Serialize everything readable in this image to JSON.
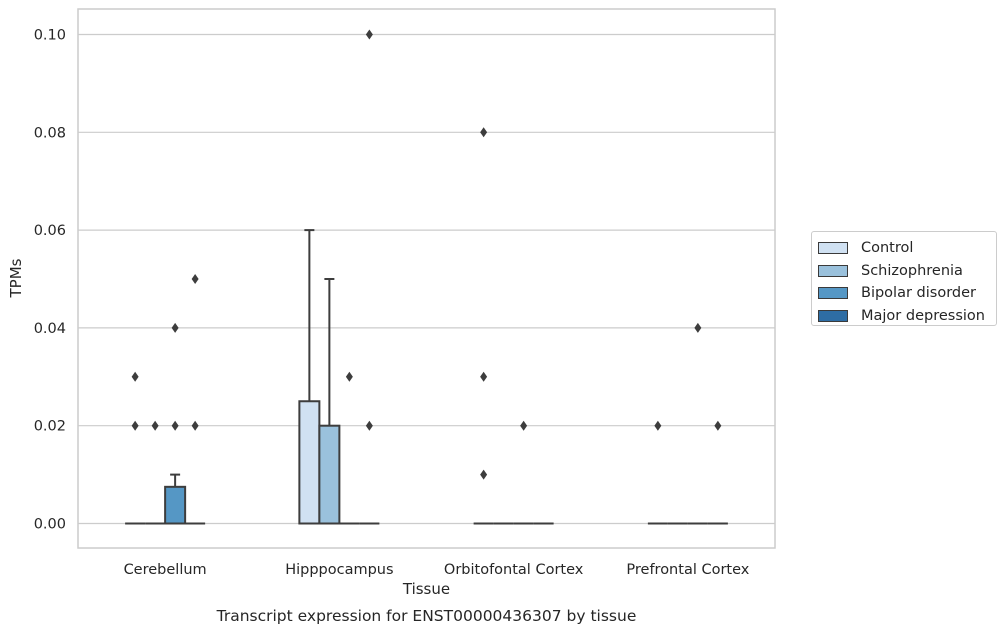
{
  "chart_data": {
    "type": "box",
    "ylabel": "TPMs",
    "xlabel": "Tissue",
    "caption": "Transcript expression for ENST00000436307 by tissue",
    "ylim": [
      -0.005,
      0.105
    ],
    "yticks": [
      0.0,
      0.02,
      0.04,
      0.06,
      0.08,
      0.1
    ],
    "ytick_labels": [
      "0.00",
      "0.02",
      "0.04",
      "0.06",
      "0.08",
      "0.10"
    ],
    "grid": true,
    "legend_position": "right",
    "categories": [
      "Cerebellum",
      "Hipppocampus",
      "Orbitofontal Cortex",
      "Prefrontal Cortex"
    ],
    "series": [
      {
        "name": "Control",
        "color": "#d0e1f2",
        "boxes": [
          {
            "q1": 0,
            "median": 0,
            "q3": 0,
            "whisker_low": 0,
            "whisker_high": 0,
            "outliers": [
              0.02,
              0.03
            ]
          },
          {
            "q1": 0,
            "median": 0,
            "q3": 0.025,
            "whisker_low": 0,
            "whisker_high": 0.06,
            "outliers": []
          },
          {
            "q1": 0,
            "median": 0,
            "q3": 0,
            "whisker_low": 0,
            "whisker_high": 0,
            "outliers": [
              0.01,
              0.03,
              0.08
            ]
          },
          {
            "q1": 0,
            "median": 0,
            "q3": 0,
            "whisker_low": 0,
            "whisker_high": 0,
            "outliers": [
              0.02
            ]
          }
        ]
      },
      {
        "name": "Schizophrenia",
        "color": "#9ac1dc",
        "boxes": [
          {
            "q1": 0,
            "median": 0,
            "q3": 0,
            "whisker_low": 0,
            "whisker_high": 0,
            "outliers": [
              0.02
            ]
          },
          {
            "q1": 0,
            "median": 0,
            "q3": 0.02,
            "whisker_low": 0,
            "whisker_high": 0.05,
            "outliers": []
          },
          {
            "q1": 0,
            "median": 0,
            "q3": 0,
            "whisker_low": 0,
            "whisker_high": 0,
            "outliers": []
          },
          {
            "q1": 0,
            "median": 0,
            "q3": 0,
            "whisker_low": 0,
            "whisker_high": 0,
            "outliers": []
          }
        ]
      },
      {
        "name": "Bipolar disorder",
        "color": "#5597c5",
        "boxes": [
          {
            "q1": 0,
            "median": 0,
            "q3": 0.0075,
            "whisker_low": 0,
            "whisker_high": 0.01,
            "outliers": [
              0.02,
              0.04
            ]
          },
          {
            "q1": 0,
            "median": 0,
            "q3": 0,
            "whisker_low": 0,
            "whisker_high": 0,
            "outliers": [
              0.03
            ]
          },
          {
            "q1": 0,
            "median": 0,
            "q3": 0,
            "whisker_low": 0,
            "whisker_high": 0,
            "outliers": [
              0.02
            ]
          },
          {
            "q1": 0,
            "median": 0,
            "q3": 0,
            "whisker_low": 0,
            "whisker_high": 0,
            "outliers": [
              0.04
            ]
          }
        ]
      },
      {
        "name": "Major depression",
        "color": "#2e6da4",
        "boxes": [
          {
            "q1": 0,
            "median": 0,
            "q3": 0,
            "whisker_low": 0,
            "whisker_high": 0,
            "outliers": [
              0.02,
              0.05
            ]
          },
          {
            "q1": 0,
            "median": 0,
            "q3": 0,
            "whisker_low": 0,
            "whisker_high": 0,
            "outliers": [
              0.02,
              0.1
            ]
          },
          {
            "q1": 0,
            "median": 0,
            "q3": 0,
            "whisker_low": 0,
            "whisker_high": 0,
            "outliers": []
          },
          {
            "q1": 0,
            "median": 0,
            "q3": 0,
            "whisker_low": 0,
            "whisker_high": 0,
            "outliers": [
              0.02
            ]
          }
        ]
      }
    ]
  }
}
